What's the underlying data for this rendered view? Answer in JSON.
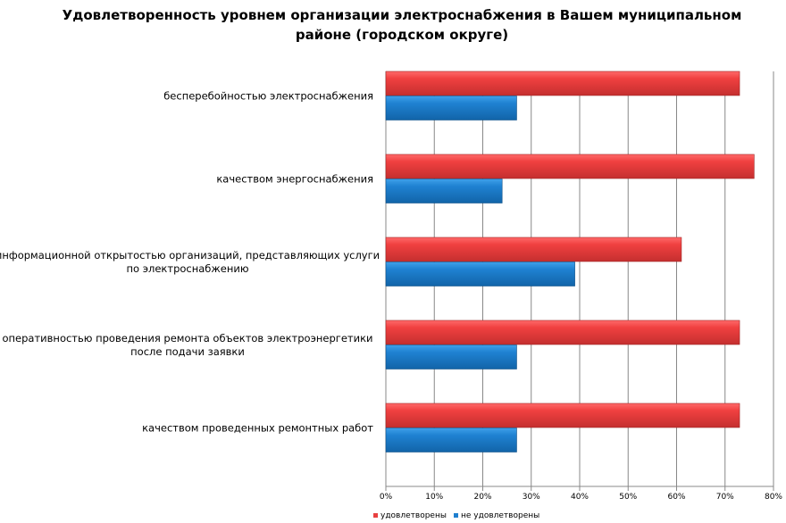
{
  "chart_data": {
    "type": "bar",
    "orientation": "horizontal",
    "title": "Удовлетворенность уровнем организации электроснабжения в Вашем муниципальном районе (городском округе)",
    "categories": [
      [
        "бесперебойностью  электроснабжения"
      ],
      [
        "качеством энергоснабжения"
      ],
      [
        "информационной открытостью организаций, представляющих услуги",
        "по электроснабжению"
      ],
      [
        "оперативностью проведения ремонта  объектов электроэнергетики",
        "после подачи заявки"
      ],
      [
        "качеством проведенных ремонтных  работ"
      ]
    ],
    "series": [
      {
        "name": "удовлетворены",
        "color": "#e84040",
        "values": [
          73,
          76,
          61,
          73,
          73
        ]
      },
      {
        "name": "не удовлетворены",
        "color": "#1f7fcf",
        "values": [
          27,
          24,
          39,
          27,
          27
        ]
      }
    ],
    "xlim": [
      0,
      80
    ],
    "ticks": [
      "0%",
      "10%",
      "20%",
      "30%",
      "40%",
      "50%",
      "60%",
      "70%",
      "80%"
    ],
    "grid": true,
    "legend": "bottom"
  }
}
